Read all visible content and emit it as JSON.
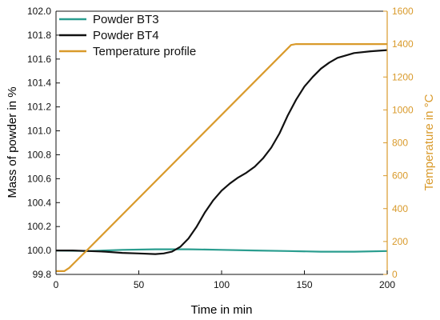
{
  "chart_data": {
    "type": "line",
    "title": "",
    "xlabel": "Time in min",
    "ylabel_left": "Mass of powder in %",
    "ylabel_right": "Temperature in °C",
    "xlim": [
      0,
      200
    ],
    "ylim_left": [
      99.8,
      102.0
    ],
    "ylim_right": [
      0,
      1600
    ],
    "x_ticks": [
      "0",
      "50",
      "100",
      "150",
      "200"
    ],
    "y_left_ticks": [
      "99.8",
      "100.0",
      "100.2",
      "100.4",
      "100.6",
      "100.8",
      "101.0",
      "101.2",
      "101.4",
      "101.6",
      "101.8",
      "102.0"
    ],
    "y_right_ticks": [
      "0",
      "200",
      "400",
      "600",
      "800",
      "1000",
      "1200",
      "1400",
      "1600"
    ],
    "grid": false,
    "legend_position": "top-left",
    "series": [
      {
        "name": "Powder BT3",
        "axis": "left",
        "color": "#2a9d8f",
        "points": [
          [
            0,
            100.0
          ],
          [
            20,
            99.995
          ],
          [
            40,
            100.005
          ],
          [
            60,
            100.01
          ],
          [
            80,
            100.01
          ],
          [
            100,
            100.005
          ],
          [
            120,
            100.0
          ],
          [
            140,
            99.995
          ],
          [
            160,
            99.99
          ],
          [
            180,
            99.99
          ],
          [
            200,
            99.995
          ]
        ]
      },
      {
        "name": "Powder BT4",
        "axis": "left",
        "color": "#111111",
        "points": [
          [
            0,
            100.0
          ],
          [
            10,
            100.0
          ],
          [
            20,
            99.995
          ],
          [
            30,
            99.99
          ],
          [
            40,
            99.98
          ],
          [
            50,
            99.975
          ],
          [
            60,
            99.97
          ],
          [
            65,
            99.975
          ],
          [
            70,
            99.99
          ],
          [
            75,
            100.03
          ],
          [
            80,
            100.1
          ],
          [
            85,
            100.2
          ],
          [
            90,
            100.32
          ],
          [
            95,
            100.42
          ],
          [
            100,
            100.5
          ],
          [
            105,
            100.56
          ],
          [
            110,
            100.61
          ],
          [
            115,
            100.65
          ],
          [
            120,
            100.7
          ],
          [
            125,
            100.77
          ],
          [
            130,
            100.86
          ],
          [
            135,
            100.98
          ],
          [
            140,
            101.13
          ],
          [
            145,
            101.26
          ],
          [
            150,
            101.37
          ],
          [
            155,
            101.45
          ],
          [
            160,
            101.52
          ],
          [
            165,
            101.57
          ],
          [
            170,
            101.61
          ],
          [
            175,
            101.63
          ],
          [
            180,
            101.65
          ],
          [
            190,
            101.665
          ],
          [
            200,
            101.675
          ]
        ]
      },
      {
        "name": "Temperature profile",
        "axis": "right",
        "color": "#d99a2b",
        "points": [
          [
            0,
            20
          ],
          [
            5,
            20
          ],
          [
            8,
            40
          ],
          [
            12,
            80
          ],
          [
            20,
            160
          ],
          [
            142,
            1395
          ],
          [
            145,
            1400
          ],
          [
            200,
            1400
          ]
        ]
      }
    ]
  }
}
